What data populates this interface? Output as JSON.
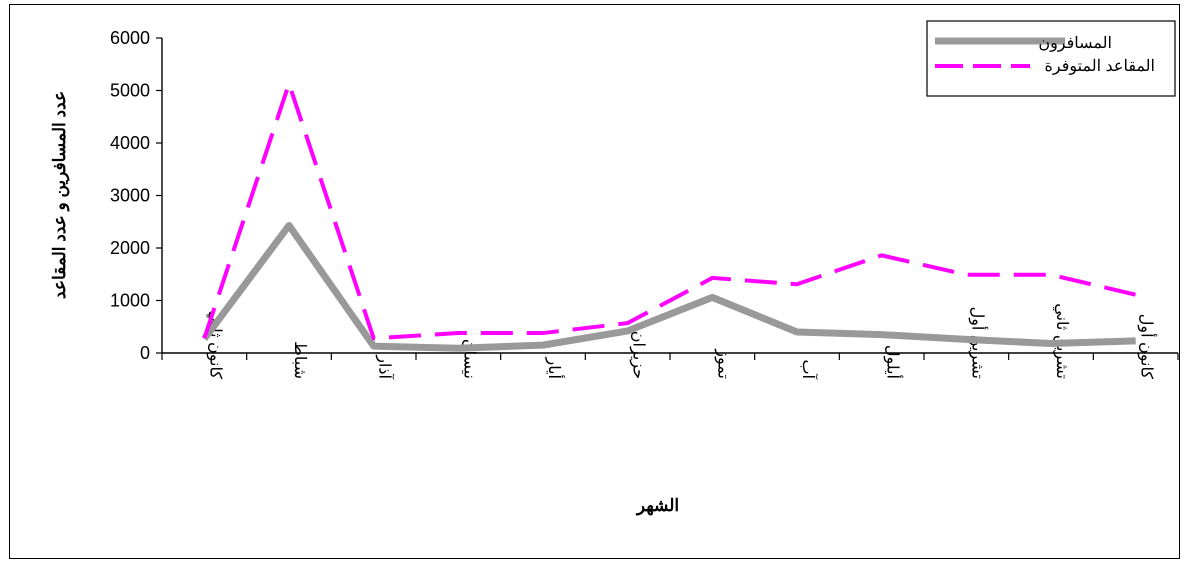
{
  "chart_data": {
    "type": "line",
    "xlabel": "الشهر",
    "ylabel": "عدد المسافرين و عدد المقاعد",
    "ylim": [
      0,
      6000
    ],
    "yticks": [
      "0",
      "1000",
      "2000",
      "3000",
      "4000",
      "5000",
      "6000"
    ],
    "grid": false,
    "legend_position": "top-right",
    "categories": [
      "كانون ثاني",
      "شباط",
      "آذار",
      "نيسان",
      "أيار",
      "حزيران",
      "تموز",
      "آب",
      "أيلول",
      "تشرين أول",
      "تشرين ثاني",
      "كانون أول"
    ],
    "series": [
      {
        "name": "المسافرون",
        "color": "#999999",
        "style": "solid",
        "values": [
          270,
          2430,
          130,
          90,
          150,
          420,
          1060,
          400,
          350,
          260,
          180,
          230
        ]
      },
      {
        "name": "المقاعد المتوفرة",
        "color": "#ff00ff",
        "style": "dashed",
        "values": [
          280,
          5130,
          280,
          380,
          380,
          570,
          1430,
          1310,
          1860,
          1490,
          1490,
          1110
        ]
      }
    ]
  }
}
